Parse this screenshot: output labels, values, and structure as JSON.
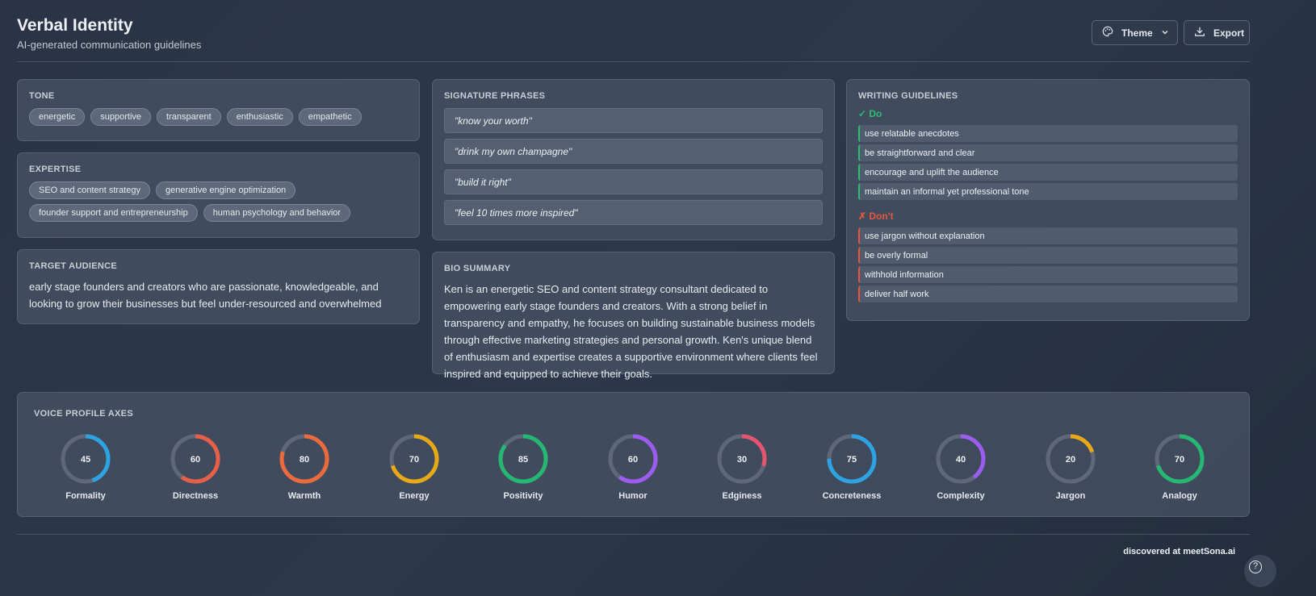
{
  "header": {
    "title": "Verbal Identity",
    "subtitle": "AI-generated communication guidelines",
    "theme_label": "Theme",
    "export_label": "Export"
  },
  "tone": {
    "title": "TONE",
    "items": [
      "energetic",
      "supportive",
      "transparent",
      "enthusiastic",
      "empathetic"
    ]
  },
  "expertise": {
    "title": "EXPERTISE",
    "items": [
      "SEO and content strategy",
      "generative engine optimization",
      "founder support and entrepreneurship",
      "human psychology and behavior"
    ]
  },
  "audience": {
    "title": "TARGET AUDIENCE",
    "text": "early stage founders and creators who are passionate, knowledgeable, and looking to grow their businesses but feel under-resourced and overwhelmed"
  },
  "phrases": {
    "title": "SIGNATURE PHRASES",
    "items": [
      "\"know your worth\"",
      "\"drink my own champagne\"",
      "\"build it right\"",
      "\"feel 10 times more inspired\""
    ]
  },
  "bio": {
    "title": "BIO SUMMARY",
    "text": "Ken is an energetic SEO and content strategy consultant dedicated to empowering early stage founders and creators. With a strong belief in transparency and empathy, he focuses on building sustainable business models through effective marketing strategies and personal growth. Ken's unique blend of enthusiasm and expertise creates a supportive environment where clients feel inspired and equipped to achieve their goals."
  },
  "guidelines": {
    "title": "WRITING GUIDELINES",
    "do_label": "✓ Do",
    "do_color": "#2ebd73",
    "do": [
      "use relatable anecdotes",
      "be straightforward and clear",
      "encourage and uplift the audience",
      "maintain an informal yet professional tone"
    ],
    "dont_label": "✗ Don't",
    "dont_color": "#e4573d",
    "dont": [
      "use jargon without explanation",
      "be overly formal",
      "withhold information",
      "deliver half work"
    ]
  },
  "voice": {
    "title": "VOICE PROFILE AXES",
    "axes": [
      {
        "label": "Formality",
        "value": "45",
        "color": "#2ea3e3"
      },
      {
        "label": "Directness",
        "value": "60",
        "color": "#e85f47"
      },
      {
        "label": "Warmth",
        "value": "80",
        "color": "#ec6a3c"
      },
      {
        "label": "Energy",
        "value": "70",
        "color": "#e9a915"
      },
      {
        "label": "Positivity",
        "value": "85",
        "color": "#25b872"
      },
      {
        "label": "Humor",
        "value": "60",
        "color": "#9d5cf0"
      },
      {
        "label": "Edginess",
        "value": "30",
        "color": "#e4566e"
      },
      {
        "label": "Concreteness",
        "value": "75",
        "color": "#2ea3e3"
      },
      {
        "label": "Complexity",
        "value": "40",
        "color": "#9d5cf0"
      },
      {
        "label": "Jargon",
        "value": "20",
        "color": "#e9a915"
      },
      {
        "label": "Analogy",
        "value": "70",
        "color": "#25b872"
      }
    ]
  },
  "footer": {
    "text": "discovered at meetSona.ai"
  }
}
